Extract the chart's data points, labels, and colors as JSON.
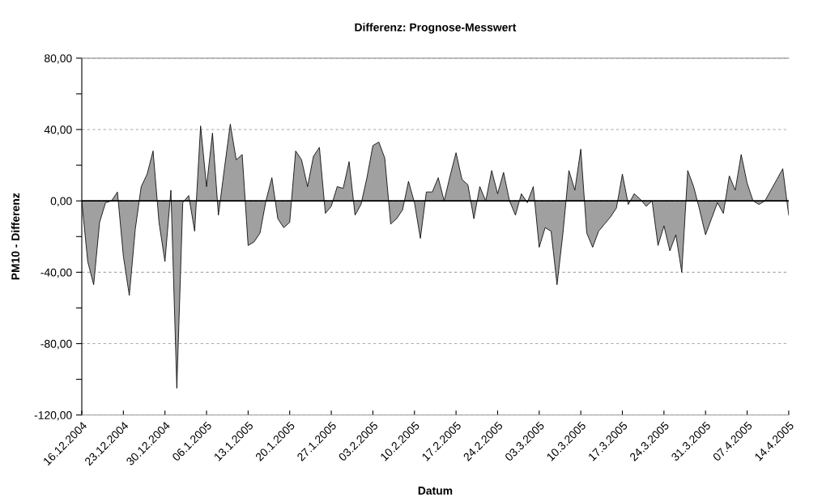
{
  "chart_data": {
    "type": "area",
    "title": "Differenz: Prognose-Messwert",
    "xlabel": "Datum",
    "ylabel": "PM10 - Differenz",
    "x": [
      "2004-12-16",
      "2004-12-17",
      "2004-12-18",
      "2004-12-19",
      "2004-12-20",
      "2004-12-21",
      "2004-12-22",
      "2004-12-23",
      "2004-12-24",
      "2004-12-25",
      "2004-12-26",
      "2004-12-27",
      "2004-12-28",
      "2004-12-29",
      "2004-12-30",
      "2004-12-31",
      "2005-01-01",
      "2005-01-02",
      "2005-01-03",
      "2005-01-04",
      "2005-01-05",
      "2005-01-06",
      "2005-01-07",
      "2005-01-08",
      "2005-01-09",
      "2005-01-10",
      "2005-01-11",
      "2005-01-12",
      "2005-01-13",
      "2005-01-14",
      "2005-01-15",
      "2005-01-16",
      "2005-01-17",
      "2005-01-18",
      "2005-01-19",
      "2005-01-20",
      "2005-01-21",
      "2005-01-22",
      "2005-01-23",
      "2005-01-24",
      "2005-01-25",
      "2005-01-26",
      "2005-01-27",
      "2005-01-28",
      "2005-01-29",
      "2005-01-30",
      "2005-01-31",
      "2005-02-01",
      "2005-02-02",
      "2005-02-03",
      "2005-02-04",
      "2005-02-05",
      "2005-02-06",
      "2005-02-07",
      "2005-02-08",
      "2005-02-09",
      "2005-02-10",
      "2005-02-11",
      "2005-02-12",
      "2005-02-13",
      "2005-02-14",
      "2005-02-15",
      "2005-02-16",
      "2005-02-17",
      "2005-02-18",
      "2005-02-19",
      "2005-02-20",
      "2005-02-21",
      "2005-02-22",
      "2005-02-23",
      "2005-02-24",
      "2005-02-25",
      "2005-02-26",
      "2005-02-27",
      "2005-02-28",
      "2005-03-01",
      "2005-03-02",
      "2005-03-03",
      "2005-03-04",
      "2005-03-05",
      "2005-03-06",
      "2005-03-07",
      "2005-03-08",
      "2005-03-09",
      "2005-03-10",
      "2005-03-11",
      "2005-03-12",
      "2005-03-13",
      "2005-03-14",
      "2005-03-15",
      "2005-03-16",
      "2005-03-17",
      "2005-03-18",
      "2005-03-19",
      "2005-03-20",
      "2005-03-21",
      "2005-03-22",
      "2005-03-23",
      "2005-03-24",
      "2005-03-25",
      "2005-03-26",
      "2005-03-27",
      "2005-03-28",
      "2005-03-29",
      "2005-03-30",
      "2005-03-31",
      "2005-04-01",
      "2005-04-02",
      "2005-04-03",
      "2005-04-04",
      "2005-04-05",
      "2005-04-06",
      "2005-04-07",
      "2005-04-08",
      "2005-04-09",
      "2005-04-10",
      "2005-04-11",
      "2005-04-12",
      "2005-04-13",
      "2005-04-14"
    ],
    "series": [
      {
        "color": "#a0a0a0",
        "values": [
          0,
          -34,
          -47,
          -12,
          -1,
          0,
          5,
          -31,
          -53,
          -16,
          8,
          15,
          28,
          -12,
          -34,
          6,
          -105,
          -1,
          3,
          -17,
          42,
          8,
          38,
          -8,
          18,
          43,
          23,
          26,
          -25,
          -23,
          -18,
          0,
          13,
          -10,
          -15,
          -12,
          28,
          23,
          8,
          25,
          30,
          -7,
          -3,
          8,
          7,
          22,
          -8,
          -2,
          13,
          31,
          33,
          24,
          -13,
          -10,
          -5,
          11,
          -1,
          -21,
          5,
          5,
          13,
          0,
          14,
          27,
          12,
          9,
          -10,
          8,
          0,
          17,
          4,
          16,
          0,
          -8,
          4,
          -1,
          8,
          -26,
          -15,
          -17,
          -47,
          -18,
          17,
          6,
          29,
          -18,
          -26,
          -17,
          -13,
          -9,
          -4,
          15,
          -2,
          4,
          1,
          -3,
          0,
          -25,
          -14,
          -28,
          -19,
          -40,
          17,
          8,
          -5,
          -19,
          -10,
          -1,
          -7,
          14,
          6,
          26,
          10,
          0,
          -2,
          0,
          6,
          12,
          18,
          -8
        ]
      }
    ],
    "xlim": [
      "2004-12-16",
      "2005-04-14"
    ],
    "xticks": [
      {
        "value": "2004-12-16",
        "label": "16.12.2004"
      },
      {
        "value": "2004-12-23",
        "label": "23.12.2004"
      },
      {
        "value": "2004-12-30",
        "label": "30.12.2004"
      },
      {
        "value": "2005-01-06",
        "label": "06.1.2005"
      },
      {
        "value": "2005-01-13",
        "label": "13.1.2005"
      },
      {
        "value": "2005-01-20",
        "label": "20.1.2005"
      },
      {
        "value": "2005-01-27",
        "label": "27.1.2005"
      },
      {
        "value": "2005-02-03",
        "label": "03.2.2005"
      },
      {
        "value": "2005-02-10",
        "label": "10.2.2005"
      },
      {
        "value": "2005-02-17",
        "label": "17.2.2005"
      },
      {
        "value": "2005-02-24",
        "label": "24.2.2005"
      },
      {
        "value": "2005-03-03",
        "label": "03.3.2005"
      },
      {
        "value": "2005-03-10",
        "label": "10.3.2005"
      },
      {
        "value": "2005-03-17",
        "label": "17.3.2005"
      },
      {
        "value": "2005-03-24",
        "label": "24.3.2005"
      },
      {
        "value": "2005-03-31",
        "label": "31.3.2005"
      },
      {
        "value": "2005-04-07",
        "label": "07.4.2005"
      },
      {
        "value": "2005-04-14",
        "label": "14.4.2005"
      }
    ],
    "ylim": [
      -120,
      80
    ],
    "yticks": [
      {
        "value": -120,
        "label": "-120,00"
      },
      {
        "value": -100,
        "label": null
      },
      {
        "value": -80,
        "label": "-80,00"
      },
      {
        "value": -60,
        "label": null
      },
      {
        "value": -40,
        "label": "-40,00"
      },
      {
        "value": -20,
        "label": null
      },
      {
        "value": 0,
        "label": "0,00"
      },
      {
        "value": 20,
        "label": null
      },
      {
        "value": 40,
        "label": "40,00"
      },
      {
        "value": 60,
        "label": null
      },
      {
        "value": 80,
        "label": "80,00"
      }
    ],
    "grid": "y"
  }
}
